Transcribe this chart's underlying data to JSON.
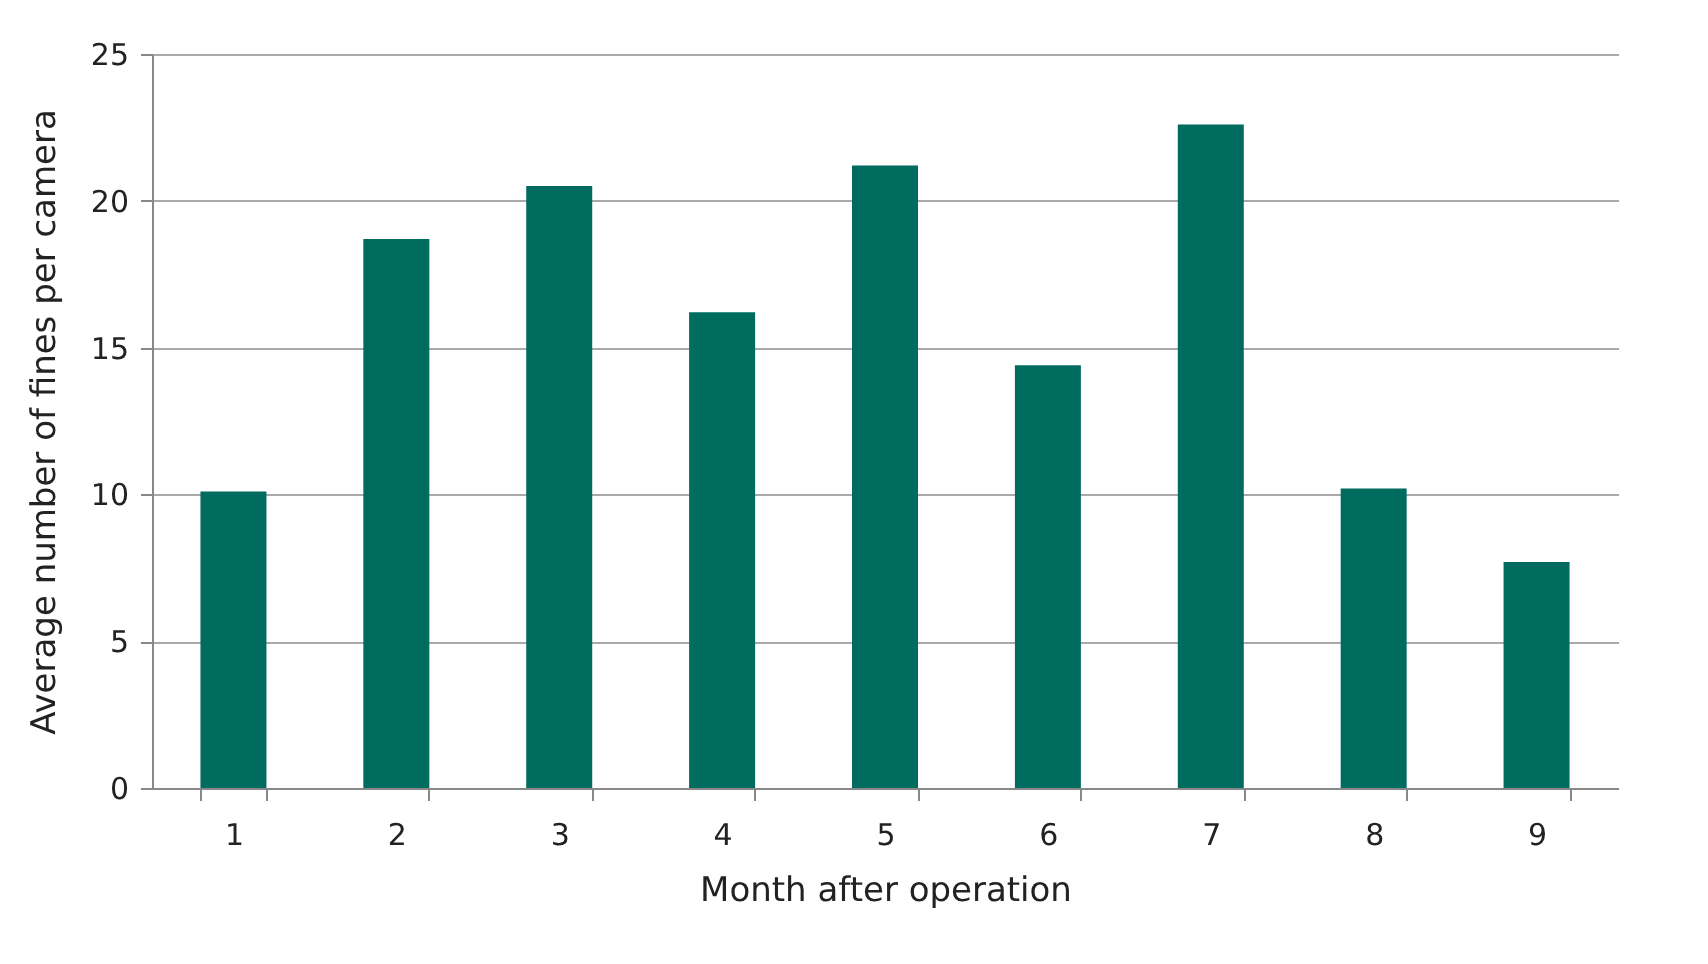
{
  "chart_data": {
    "type": "bar",
    "xlabel": "Month after operation",
    "ylabel": "Average number of fines per camera",
    "categories": [
      "1",
      "2",
      "3",
      "4",
      "5",
      "6",
      "7",
      "8",
      "9"
    ],
    "values": [
      10.1,
      18.7,
      20.5,
      16.2,
      21.2,
      14.4,
      22.6,
      10.2,
      7.7
    ],
    "color": "#006b5f",
    "ylim": [
      0,
      25
    ],
    "yticks": [
      0,
      5,
      10,
      15,
      20,
      25
    ],
    "grid": "y"
  }
}
